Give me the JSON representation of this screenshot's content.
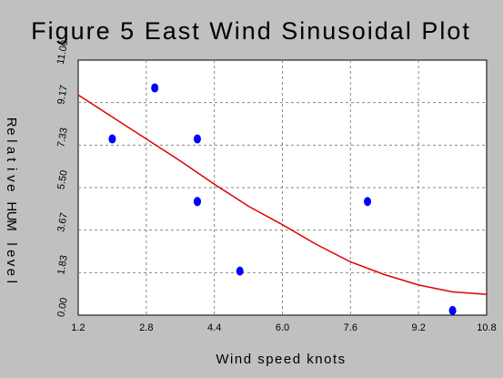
{
  "chart_data": {
    "type": "scatter",
    "title": "Figure 5 East Wind Sinusoidal Plot",
    "xlabel": "Wind speed knots",
    "ylabel": "Relative HUM level",
    "xlim": [
      1.2,
      10.8
    ],
    "ylim": [
      0.0,
      11.0
    ],
    "x_ticks": [
      "1.2",
      "2.8",
      "4.4",
      "6.0",
      "7.6",
      "9.2",
      "10.8"
    ],
    "y_ticks": [
      "0.00",
      "1.83",
      "3.67",
      "5.50",
      "7.33",
      "9.17",
      "11.00"
    ],
    "grid": true,
    "series": [
      {
        "type": "scatter",
        "color": "#0000ff",
        "x": [
          2,
          3,
          4,
          4,
          4,
          5,
          8,
          10
        ],
        "y": [
          7.6,
          9.8,
          7.6,
          4.9,
          4.9,
          1.9,
          4.9,
          0.2
        ]
      },
      {
        "type": "line",
        "color": "#e00000",
        "x": [
          1.2,
          2.0,
          2.8,
          3.6,
          4.4,
          5.2,
          6.0,
          6.8,
          7.6,
          8.4,
          9.2,
          10.0,
          10.8
        ],
        "y": [
          9.5,
          8.55,
          7.6,
          6.65,
          5.65,
          4.7,
          3.9,
          3.05,
          2.3,
          1.75,
          1.3,
          1.0,
          0.9
        ]
      }
    ]
  }
}
